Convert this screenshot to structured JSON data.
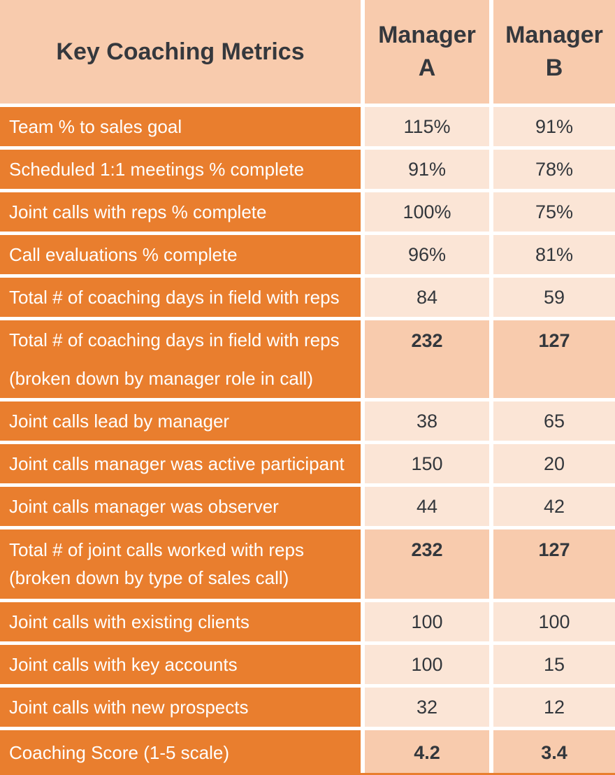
{
  "table": {
    "header": {
      "metric": "Key Coaching Metrics",
      "manager_a": "Manager\nA",
      "manager_b": "Manager\nB"
    },
    "rows": [
      {
        "label": "Team % to sales goal",
        "a": "115%",
        "b": "91%"
      },
      {
        "label": "Scheduled 1:1 meetings % complete",
        "a": "91%",
        "b": "78%"
      },
      {
        "label": "Joint calls with reps % complete",
        "a": "100%",
        "b": "75%"
      },
      {
        "label": "Call evaluations % complete",
        "a": "96%",
        "b": "81%"
      },
      {
        "label": "Total # of coaching days in field with reps",
        "a": "84",
        "b": "59"
      },
      {
        "label": "Total # of coaching days in field with reps",
        "label2": "(broken down by manager role in call)",
        "a": "232",
        "b": "127",
        "emphasis": true,
        "spread": true
      },
      {
        "label": "Joint calls lead by manager",
        "a": "38",
        "b": "65"
      },
      {
        "label": "Joint calls manager was active participant",
        "a": "150",
        "b": "20"
      },
      {
        "label": "Joint calls manager was observer",
        "a": "44",
        "b": "42"
      },
      {
        "label": "Total # of joint calls worked with reps",
        "label2": "(broken down by type of sales call)",
        "a": "232",
        "b": "127",
        "emphasis": true
      },
      {
        "label": "Joint calls with existing clients",
        "a": "100",
        "b": "100"
      },
      {
        "label": "Joint calls with key accounts",
        "a": "100",
        "b": "15"
      },
      {
        "label": "Joint calls with new prospects",
        "a": "32",
        "b": "12"
      },
      {
        "label": "Coaching Score (1-5 scale)",
        "a": "4.2",
        "b": "3.4",
        "emphasis": true,
        "score": true
      }
    ]
  },
  "colors": {
    "orange": "#E97E2E",
    "peach": "#F8CBAD",
    "light_peach": "#FBE5D6",
    "text_dark": "#35383D",
    "text_light": "#FFFFFF"
  }
}
